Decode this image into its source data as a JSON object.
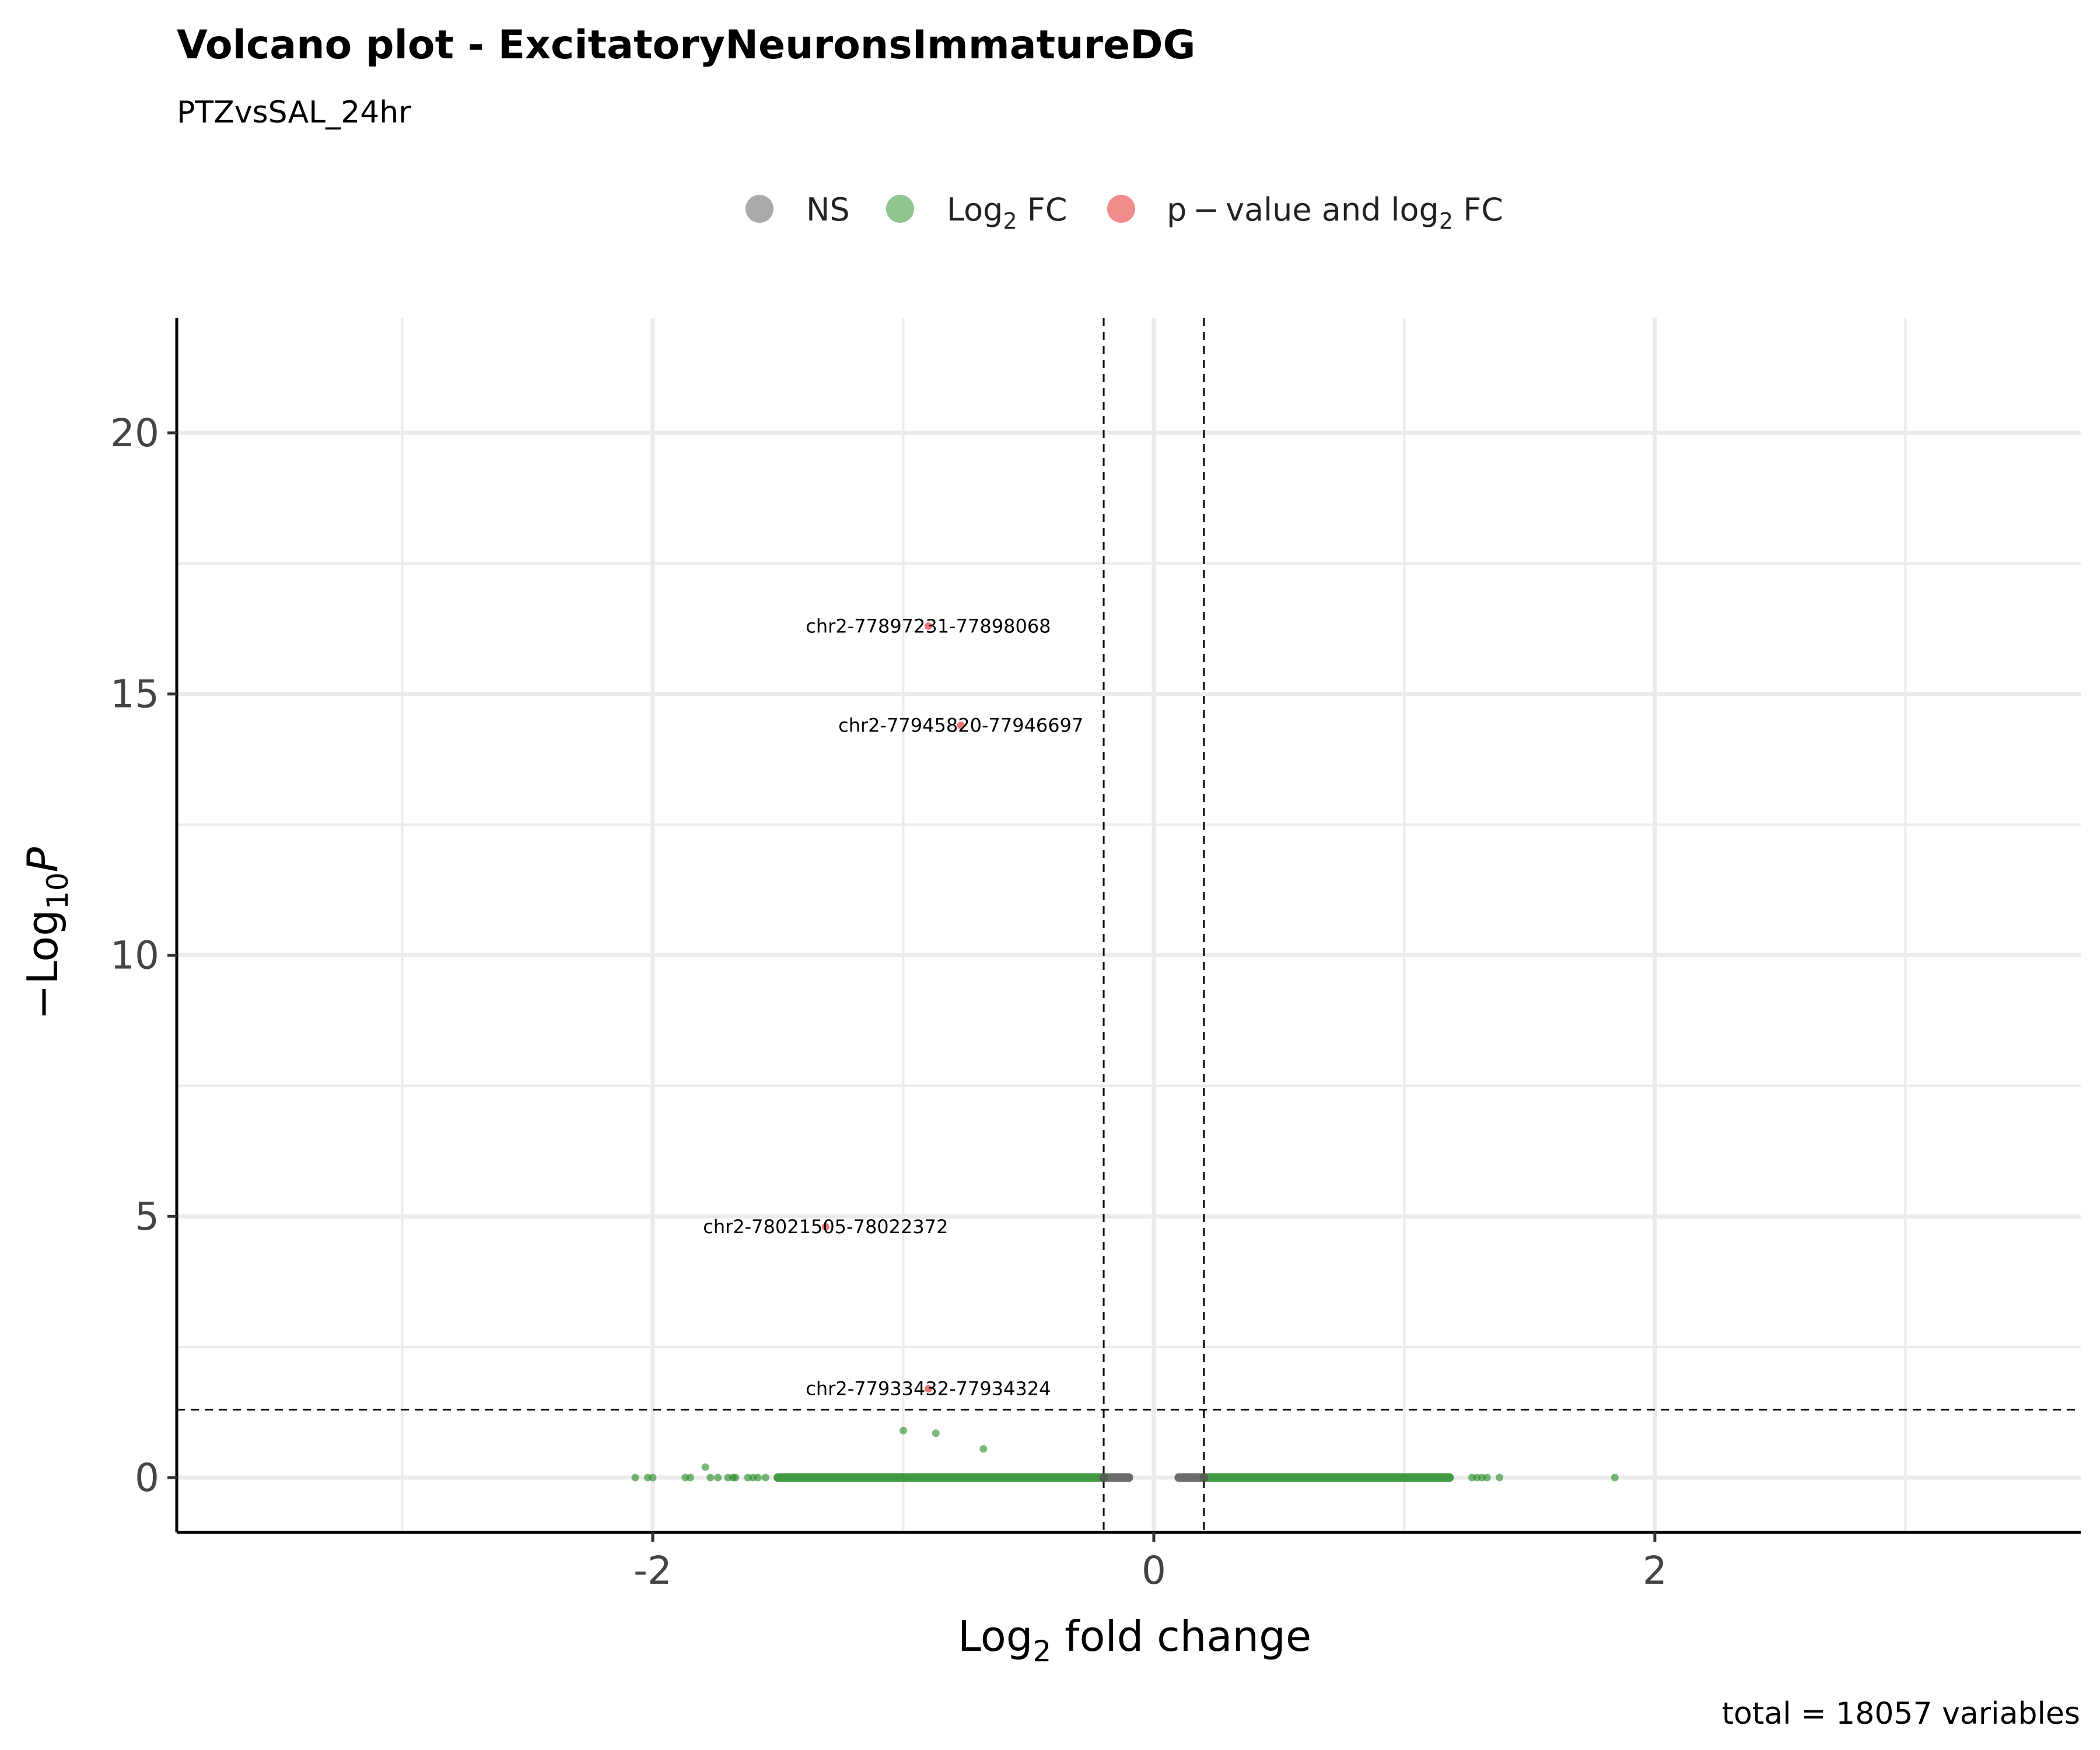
{
  "chart_data": {
    "type": "scatter",
    "title": "Volcano plot - ExcitatoryNeuronsImmatureDG",
    "subtitle": "PTZvsSAL_24hr",
    "caption": "total = 18057 variables",
    "xlabel": {
      "main": "Log",
      "sub": "2",
      "rest": " fold change"
    },
    "ylabel": {
      "prefix": "−Log",
      "sub": "10",
      "italic": "P"
    },
    "xlim": [
      -3.9,
      3.7
    ],
    "ylim": [
      -1.05,
      22.2
    ],
    "x_ticks": [
      -2,
      0,
      2
    ],
    "x_tick_labels": [
      "-2",
      "0",
      "2"
    ],
    "y_ticks": [
      0,
      5,
      10,
      15,
      20
    ],
    "y_tick_labels": [
      "0",
      "5",
      "10",
      "15",
      "20"
    ],
    "x_minor_grid": [
      -3,
      -1,
      1,
      3
    ],
    "y_minor_grid": [
      2.5,
      7.5,
      12.5,
      17.5
    ],
    "grid": true,
    "cutoffs": {
      "fc": [
        -0.2,
        0.2
      ],
      "p": 1.3
    },
    "legend": {
      "position": "top",
      "entries": [
        {
          "key": "ns",
          "label": "NS",
          "color": "#555555"
        },
        {
          "key": "fc",
          "label_main": "Log",
          "label_sub": "2",
          "label_rest": " FC",
          "color": "#228B22"
        },
        {
          "key": "pfc",
          "label_main": "p − value and log",
          "label_sub": "2",
          "label_rest": " FC",
          "color": "#E41A1C"
        }
      ]
    },
    "colors": {
      "ns": "#555555",
      "fc": "#228B22",
      "pfc": "#E41A1C"
    },
    "series": [
      {
        "key": "fc",
        "points": [
          [
            -2.07,
            0
          ],
          [
            -2.02,
            0
          ],
          [
            -2.0,
            0
          ],
          [
            -1.87,
            0
          ],
          [
            -1.85,
            0
          ],
          [
            -1.79,
            0.2
          ],
          [
            -1.77,
            0
          ],
          [
            -1.74,
            0
          ],
          [
            -1.7,
            0
          ],
          [
            -1.68,
            0
          ],
          [
            -1.67,
            0
          ],
          [
            -1.62,
            0
          ],
          [
            -1.6,
            0
          ],
          [
            -1.58,
            0
          ],
          [
            -1.55,
            0
          ],
          [
            -1.0,
            0.9
          ],
          [
            -0.87,
            0.85
          ],
          [
            -0.68,
            0.55
          ],
          [
            1.84,
            0
          ],
          [
            1.38,
            0
          ],
          [
            1.33,
            0
          ],
          [
            1.31,
            0
          ],
          [
            1.29,
            0
          ],
          [
            1.27,
            0
          ]
        ],
        "dense_ranges": [
          [
            -1.5,
            -0.2
          ],
          [
            0.2,
            1.18
          ]
        ]
      },
      {
        "key": "ns",
        "points": [],
        "dense_ranges": [
          [
            -0.2,
            -0.1
          ],
          [
            0.1,
            0.2
          ]
        ]
      },
      {
        "key": "pfc",
        "points": [
          [
            -0.9,
            16.3,
            "chr2-77897231-77898068"
          ],
          [
            -0.77,
            14.4,
            "chr2-77945820-77946697"
          ],
          [
            -1.31,
            4.8,
            "chr2-78021505-78022372"
          ],
          [
            -0.9,
            1.7,
            "chr2-77933432-77934324"
          ]
        ]
      }
    ]
  }
}
